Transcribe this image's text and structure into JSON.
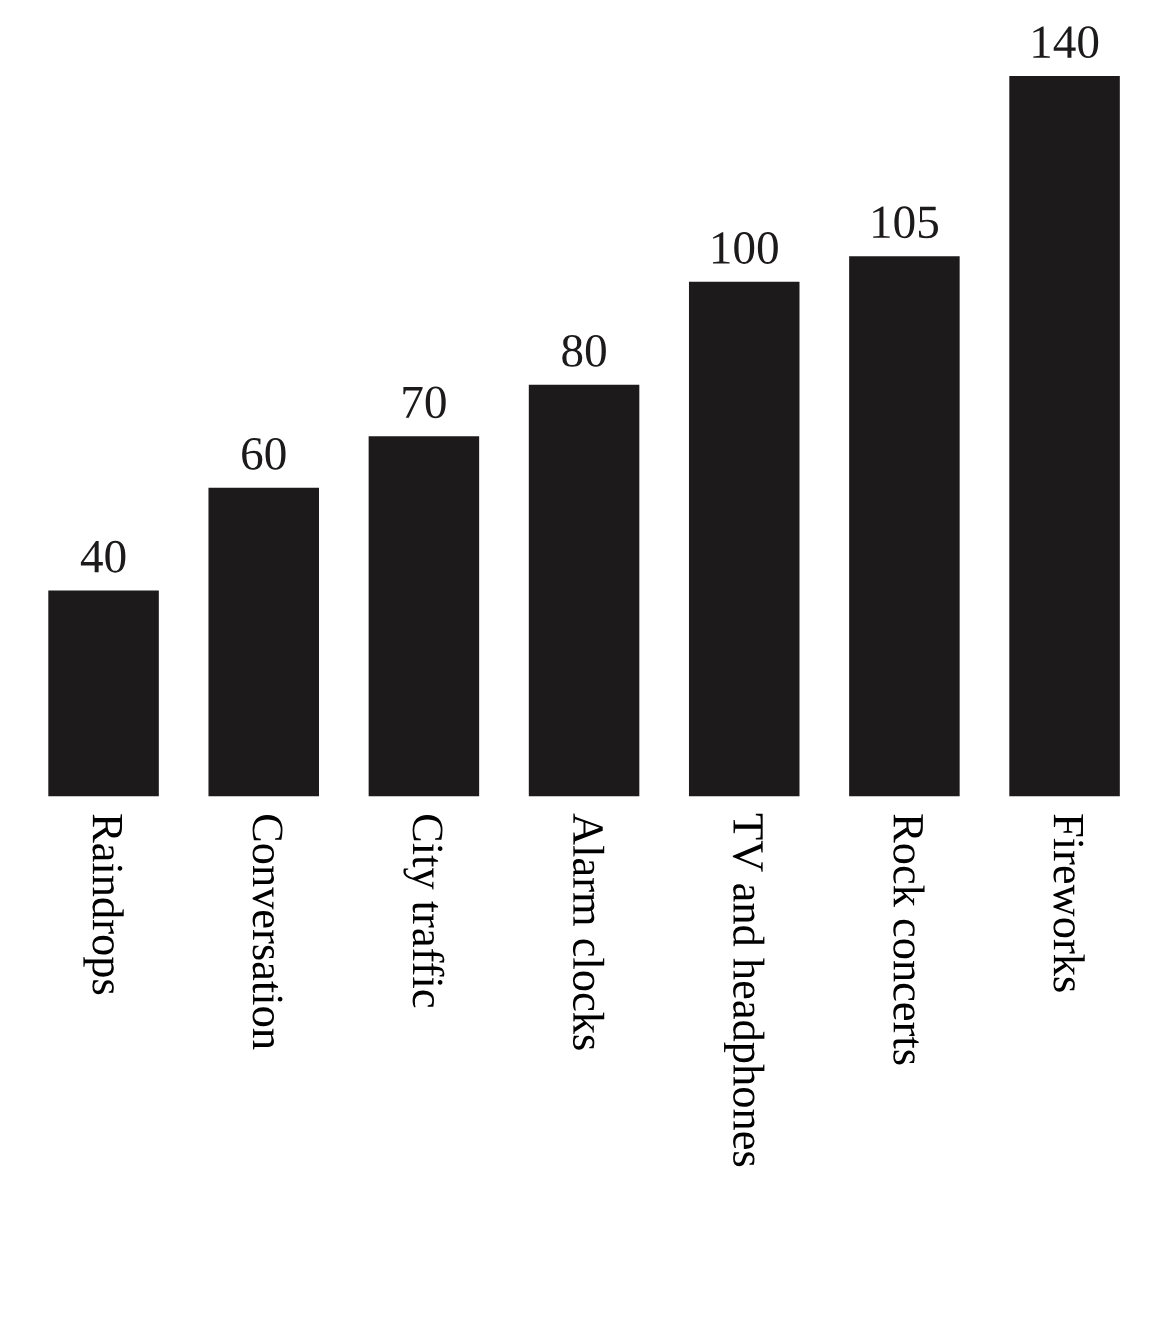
{
  "chart_data": {
    "type": "bar",
    "categories": [
      "Raindrops",
      "Conversation",
      "City traffic",
      "Alarm clocks",
      "TV and headphones",
      "Rock concerts",
      "Fireworks"
    ],
    "values": [
      40,
      60,
      70,
      80,
      100,
      105,
      140
    ],
    "color": "#1c1a1a",
    "data_labels": true,
    "grid": false,
    "legend": false
  }
}
